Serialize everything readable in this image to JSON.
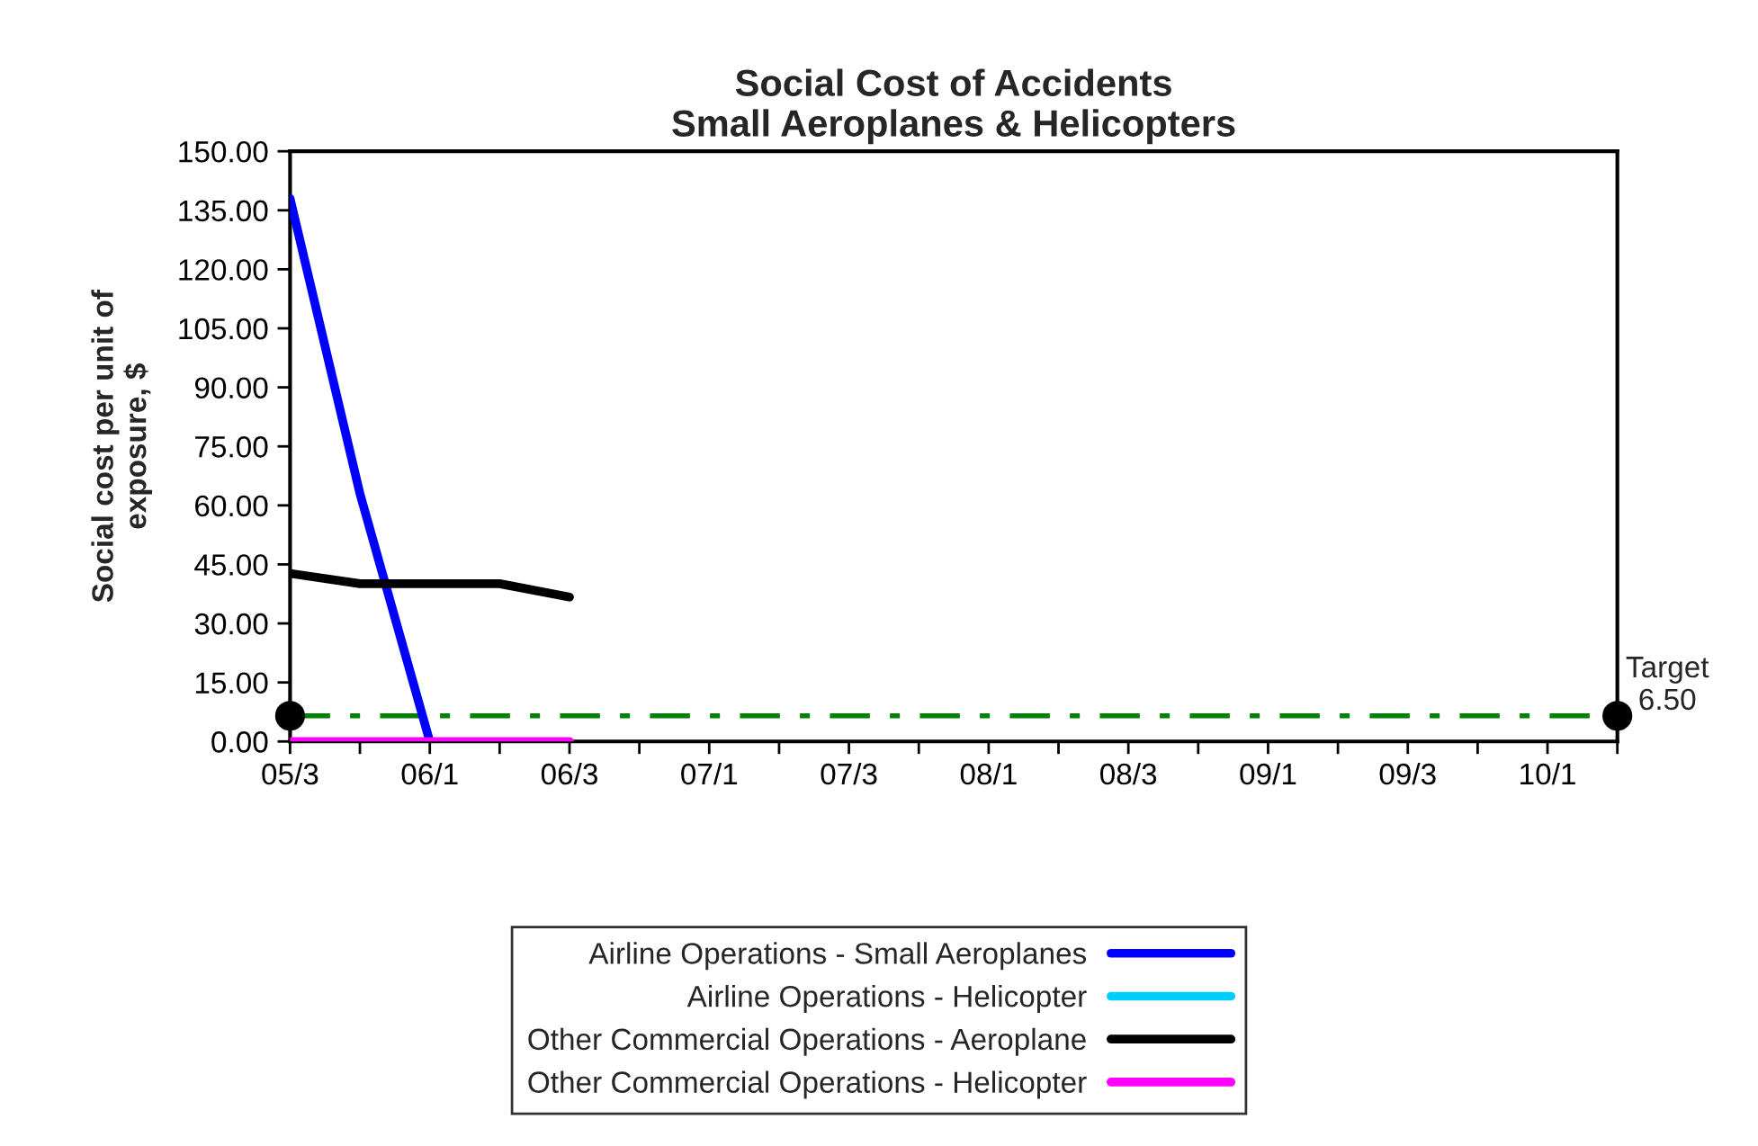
{
  "chart_data": {
    "type": "line",
    "title": "Social Cost of Accidents\nSmall Aeroplanes & Helicopters",
    "ylabel": "Social cost per unit of\nexposure, $",
    "categories": [
      "05/3",
      null,
      "06/1",
      null,
      "06/3",
      null,
      "07/1",
      null,
      "07/3",
      null,
      "08/1",
      null,
      "08/3",
      null,
      "09/1",
      null,
      "09/3",
      null,
      "10/1",
      null
    ],
    "series": [
      {
        "name": "Airline Operations - Small Aeroplanes",
        "color": "#0000ff",
        "values": [
          138,
          63,
          0,
          null,
          null,
          null,
          null,
          null,
          null,
          null,
          null,
          null,
          null,
          null,
          null,
          null,
          null,
          null,
          null,
          null
        ]
      },
      {
        "name": "Airline Operations - Helicopter",
        "color": "#00ccff",
        "values": [
          null,
          null,
          null,
          null,
          null,
          null,
          null,
          null,
          null,
          null,
          null,
          null,
          null,
          null,
          null,
          null,
          null,
          null,
          null,
          null
        ]
      },
      {
        "name": "Other Commercial Operations - Aeroplane",
        "color": "#000000",
        "values": [
          42.7,
          40.1,
          40.1,
          40.1,
          36.7,
          null,
          null,
          null,
          null,
          null,
          null,
          null,
          null,
          null,
          null,
          null,
          null,
          null,
          null,
          null
        ]
      },
      {
        "name": "Other Commercial Operations - Helicopter",
        "color": "#ff00ff",
        "values": [
          0,
          0,
          0,
          0,
          0,
          null,
          null,
          null,
          null,
          null,
          null,
          null,
          null,
          null,
          null,
          null,
          null,
          null,
          null,
          null
        ]
      },
      {
        "type": "scatter",
        "color": "#000000",
        "values": [
          6.5,
          null,
          null,
          null,
          null,
          null,
          null,
          null,
          null,
          null,
          null,
          null,
          null,
          null,
          null,
          null,
          null,
          null,
          null,
          6.5
        ]
      }
    ],
    "ylim": [
      0,
      150
    ],
    "yticks": [
      {
        "value": 0,
        "label": "0.00"
      },
      {
        "value": 15,
        "label": "15.00"
      },
      {
        "value": 30,
        "label": "30.00"
      },
      {
        "value": 45,
        "label": "45.00"
      },
      {
        "value": 60,
        "label": "60.00"
      },
      {
        "value": 75,
        "label": "75.00"
      },
      {
        "value": 90,
        "label": "90.00"
      },
      {
        "value": 105,
        "label": "105.00"
      },
      {
        "value": 120,
        "label": "120.00"
      },
      {
        "value": 135,
        "label": "135.00"
      },
      {
        "value": 150,
        "label": "150.00"
      }
    ],
    "ref_lines": [
      {
        "axis": "y",
        "value": 6.5,
        "label": "Target\n6.50",
        "color": "#008000",
        "line_style": "dashdot"
      }
    ],
    "legend": "bottom",
    "grid": false
  }
}
